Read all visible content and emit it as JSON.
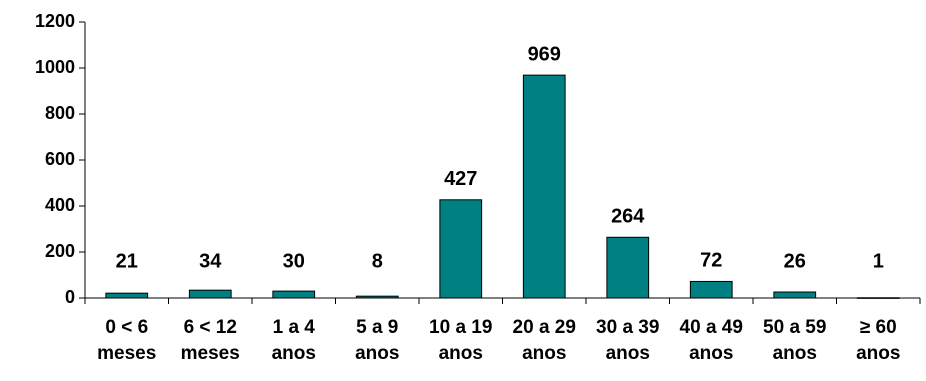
{
  "chart_data": {
    "type": "bar",
    "categories": [
      [
        "0 < 6",
        "meses"
      ],
      [
        "6 < 12",
        "meses"
      ],
      [
        "1 a 4",
        "anos"
      ],
      [
        "5 a 9",
        "anos"
      ],
      [
        "10 a 19",
        "anos"
      ],
      [
        "20 a 29",
        "anos"
      ],
      [
        "30 a 39",
        "anos"
      ],
      [
        "40 a 49",
        "anos"
      ],
      [
        "50 a 59",
        "anos"
      ],
      [
        "≥ 60",
        "anos"
      ]
    ],
    "values": [
      21,
      34,
      30,
      8,
      427,
      969,
      264,
      72,
      26,
      1
    ],
    "data_labels": [
      "21",
      "34",
      "30",
      "8",
      "427",
      "969",
      "264",
      "72",
      "26",
      "1"
    ],
    "ylim": [
      0,
      1200
    ],
    "yticks": [
      0,
      200,
      400,
      600,
      800,
      1000,
      1200
    ],
    "title": "",
    "xlabel": "",
    "ylabel": "",
    "grid": false,
    "legend": "none",
    "bar_color": "#008080",
    "bar_outline": "#000000"
  }
}
